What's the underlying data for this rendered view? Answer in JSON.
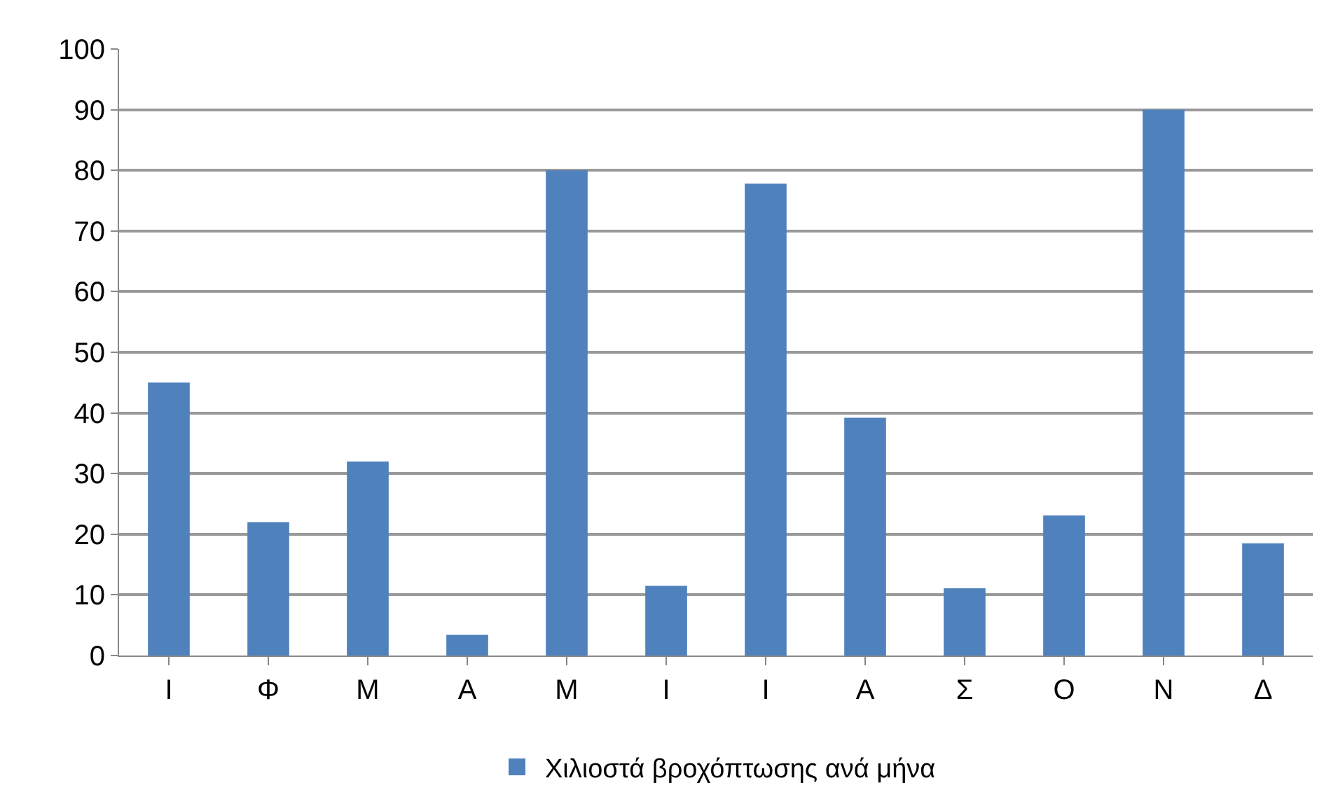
{
  "chart_data": {
    "type": "bar",
    "categories": [
      "Ι",
      "Φ",
      "Μ",
      "Α",
      "Μ",
      "Ι",
      "Ι",
      "Α",
      "Σ",
      "Ο",
      "Ν",
      "Δ"
    ],
    "series": [
      {
        "name": "Χιλιοστά βροχόπτωσης ανά μήνα",
        "color": "#4f81bd",
        "values": [
          45,
          22,
          32,
          3.4,
          80,
          11.5,
          77.8,
          39.2,
          11.1,
          23.1,
          90,
          18.5
        ]
      }
    ],
    "ylim": [
      0,
      100
    ],
    "yticks": [
      0,
      10,
      20,
      30,
      40,
      50,
      60,
      70,
      80,
      90,
      100
    ],
    "grid": "y",
    "legend": "bottom"
  }
}
